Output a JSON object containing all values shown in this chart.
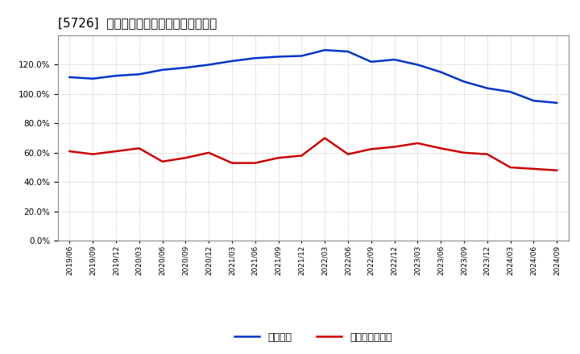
{
  "title": "[5726]  固定比率、固定長期適合率の推移",
  "x_labels": [
    "2019/06",
    "2019/09",
    "2019/12",
    "2020/03",
    "2020/06",
    "2020/09",
    "2020/12",
    "2021/03",
    "2021/06",
    "2021/09",
    "2021/12",
    "2022/03",
    "2022/06",
    "2022/09",
    "2022/12",
    "2023/03",
    "2023/06",
    "2023/09",
    "2023/12",
    "2024/03",
    "2024/06",
    "2024/09"
  ],
  "fixed_ratio": [
    111.5,
    110.5,
    112.5,
    113.5,
    116.5,
    118.0,
    120.0,
    122.5,
    124.5,
    125.5,
    126.0,
    130.0,
    129.0,
    122.0,
    123.5,
    120.0,
    115.0,
    108.5,
    104.0,
    101.5,
    95.5,
    94.0
  ],
  "fixed_long_ratio": [
    61.0,
    59.0,
    61.0,
    63.0,
    54.0,
    56.5,
    60.0,
    53.0,
    53.0,
    56.5,
    58.0,
    70.0,
    59.0,
    62.5,
    64.0,
    66.5,
    63.0,
    60.0,
    59.0,
    50.0,
    49.0,
    48.0
  ],
  "line1_color": "#0033cc",
  "line2_color": "#cc0000",
  "legend1": "固定比率",
  "legend2": "固定長期適合率",
  "ylim": [
    0,
    140
  ],
  "yticks": [
    0,
    20,
    40,
    60,
    80,
    100,
    120
  ],
  "background_color": "#ffffff",
  "plot_bg_color": "#ffffff",
  "grid_color": "#aaaaaa",
  "title_fontsize": 11
}
